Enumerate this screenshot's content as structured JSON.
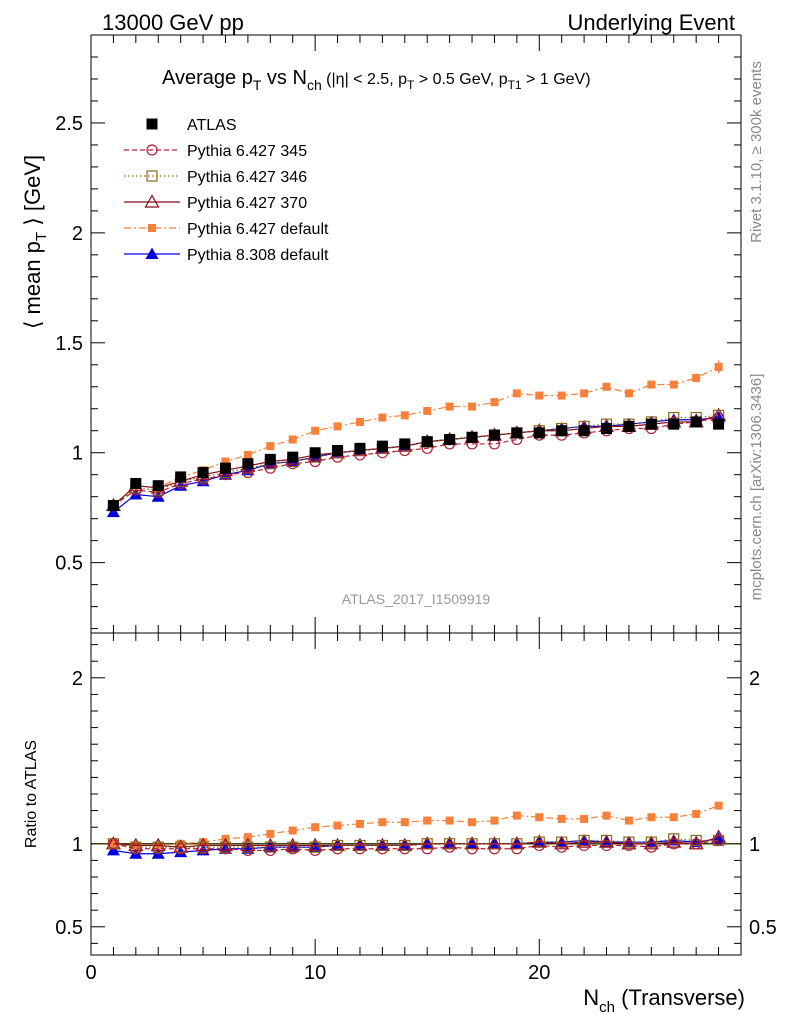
{
  "header": {
    "left": "13000 GeV pp",
    "right": "Underlying Event"
  },
  "side_labels": {
    "rivet": "Rivet 3.1.10, ≥ 300k events",
    "mcplots": "mcplots.cern.ch [arXiv:1306.3436]"
  },
  "watermark": "ATLAS_2017_I1509919",
  "chart_data": [
    {
      "type": "scatter",
      "panel": "main",
      "title": {
        "main": "Average p",
        "sub1": "T",
        "mid": " vs N",
        "sub2": "ch",
        "cut1": " (|η| < 2.5, p",
        "sub3": "T",
        "cut2": " > 0.5 GeV, p",
        "sub4": "T1",
        "cut3": " > 1 GeV)"
      },
      "ylabel": {
        "pre": "⟨ mean p",
        "sub": "T",
        "post": " ⟩ [GeV]"
      },
      "xlim": [
        0,
        29
      ],
      "ylim": [
        0.18,
        2.9
      ],
      "yticks": [
        "0.5",
        "1",
        "1.5",
        "2",
        "2.5"
      ],
      "legend_position": "top-left",
      "x": [
        1,
        2,
        3,
        4,
        5,
        6,
        7,
        8,
        9,
        10,
        11,
        12,
        13,
        14,
        15,
        16,
        17,
        18,
        19,
        20,
        21,
        22,
        23,
        24,
        25,
        26,
        27,
        28
      ],
      "series": [
        {
          "name": "ATLAS",
          "color": "#000000",
          "marker": "filled-square",
          "line": "none",
          "values": [
            0.76,
            0.86,
            0.85,
            0.89,
            0.91,
            0.93,
            0.95,
            0.97,
            0.98,
            1.0,
            1.01,
            1.02,
            1.03,
            1.04,
            1.05,
            1.06,
            1.07,
            1.08,
            1.09,
            1.09,
            1.1,
            1.1,
            1.11,
            1.12,
            1.13,
            1.13,
            1.14,
            1.13
          ]
        },
        {
          "name": "Pythia 6.427 345",
          "color": "#b22234",
          "marker": "open-circle",
          "line": "dashed",
          "values": [
            0.76,
            0.83,
            0.82,
            0.86,
            0.88,
            0.9,
            0.91,
            0.93,
            0.95,
            0.96,
            0.98,
            0.99,
            1.0,
            1.01,
            1.02,
            1.04,
            1.04,
            1.04,
            1.06,
            1.08,
            1.08,
            1.09,
            1.1,
            1.11,
            1.11,
            1.13,
            1.14,
            1.16
          ]
        },
        {
          "name": "Pythia 6.427 346",
          "color": "#8b6914",
          "marker": "open-square",
          "line": "dotted",
          "values": [
            0.76,
            0.84,
            0.83,
            0.87,
            0.89,
            0.91,
            0.93,
            0.95,
            0.96,
            0.98,
            1.0,
            1.01,
            1.02,
            1.03,
            1.05,
            1.06,
            1.07,
            1.08,
            1.09,
            1.1,
            1.11,
            1.12,
            1.13,
            1.13,
            1.14,
            1.16,
            1.16,
            1.17
          ]
        },
        {
          "name": "Pythia 6.427 370",
          "color": "#8b0a1a",
          "marker": "open-triangle",
          "line": "solid",
          "values": [
            0.76,
            0.85,
            0.84,
            0.87,
            0.9,
            0.92,
            0.94,
            0.96,
            0.97,
            0.99,
            1.0,
            1.01,
            1.02,
            1.03,
            1.05,
            1.06,
            1.07,
            1.08,
            1.09,
            1.1,
            1.1,
            1.11,
            1.12,
            1.12,
            1.13,
            1.14,
            1.14,
            1.17
          ]
        },
        {
          "name": "Pythia 6.427 default",
          "color": "#f7803a",
          "marker": "filled-square-small",
          "line": "dashdot",
          "values": [
            0.76,
            0.85,
            0.84,
            0.89,
            0.92,
            0.96,
            0.99,
            1.03,
            1.06,
            1.1,
            1.12,
            1.14,
            1.16,
            1.17,
            1.19,
            1.21,
            1.21,
            1.23,
            1.27,
            1.26,
            1.26,
            1.27,
            1.3,
            1.27,
            1.31,
            1.31,
            1.34,
            1.39
          ],
          "errors": [
            0.01,
            0.01,
            0.01,
            0.01,
            0.01,
            0.01,
            0.01,
            0.01,
            0.01,
            0.01,
            0.01,
            0.01,
            0.01,
            0.01,
            0.01,
            0.01,
            0.01,
            0.01,
            0.01,
            0.01,
            0.01,
            0.01,
            0.01,
            0.01,
            0.01,
            0.01,
            0.02,
            0.03
          ]
        },
        {
          "name": "Pythia 8.308 default",
          "color": "#0000dd",
          "marker": "filled-triangle",
          "line": "solid",
          "values": [
            0.73,
            0.81,
            0.8,
            0.85,
            0.87,
            0.9,
            0.92,
            0.95,
            0.96,
            0.98,
            1.0,
            1.01,
            1.02,
            1.03,
            1.05,
            1.06,
            1.07,
            1.08,
            1.09,
            1.1,
            1.11,
            1.12,
            1.12,
            1.13,
            1.14,
            1.15,
            1.15,
            1.16
          ]
        }
      ]
    },
    {
      "type": "scatter",
      "panel": "ratio",
      "ylabel": "Ratio to ATLAS",
      "xlabel": {
        "pre": "N",
        "sub": "ch",
        "post": " (Transverse)"
      },
      "xlim": [
        0,
        29
      ],
      "ylim": [
        0.33,
        2.27
      ],
      "xticks": [
        "0",
        "10",
        "20"
      ],
      "yticks": [
        "0.5",
        "1",
        "2"
      ],
      "reference_line": 1,
      "x": [
        1,
        2,
        3,
        4,
        5,
        6,
        7,
        8,
        9,
        10,
        11,
        12,
        13,
        14,
        15,
        16,
        17,
        18,
        19,
        20,
        21,
        22,
        23,
        24,
        25,
        26,
        27,
        28
      ],
      "series": [
        {
          "name": "Pythia 6.427 345",
          "color": "#b22234",
          "marker": "open-circle",
          "line": "dashed",
          "values": [
            1.0,
            0.97,
            0.97,
            0.97,
            0.97,
            0.97,
            0.96,
            0.96,
            0.97,
            0.96,
            0.97,
            0.97,
            0.97,
            0.97,
            0.97,
            0.98,
            0.97,
            0.97,
            0.97,
            0.99,
            0.98,
            0.99,
            0.99,
            0.99,
            0.98,
            1.0,
            1.0,
            1.02
          ]
        },
        {
          "name": "Pythia 6.427 346",
          "color": "#8b6914",
          "marker": "open-square",
          "line": "dotted",
          "values": [
            1.0,
            0.98,
            0.98,
            0.98,
            0.98,
            0.98,
            0.98,
            0.98,
            0.98,
            0.98,
            0.99,
            0.99,
            0.99,
            0.99,
            1.0,
            1.0,
            1.0,
            1.0,
            1.0,
            1.01,
            1.01,
            1.02,
            1.02,
            1.01,
            1.01,
            1.03,
            1.02,
            1.02
          ]
        },
        {
          "name": "Pythia 6.427 370",
          "color": "#8b0a1a",
          "marker": "open-triangle",
          "line": "solid",
          "values": [
            1.0,
            0.99,
            0.99,
            0.98,
            0.99,
            0.99,
            0.99,
            0.99,
            0.99,
            0.99,
            0.99,
            0.99,
            0.99,
            0.99,
            1.0,
            1.0,
            1.0,
            1.0,
            1.0,
            1.01,
            1.0,
            1.01,
            1.01,
            1.0,
            1.0,
            1.01,
            1.0,
            1.04
          ]
        },
        {
          "name": "Pythia 6.427 default",
          "color": "#f7803a",
          "marker": "filled-square-small",
          "line": "dashdot",
          "values": [
            1.0,
            0.99,
            0.99,
            1.0,
            1.01,
            1.03,
            1.04,
            1.06,
            1.08,
            1.1,
            1.11,
            1.12,
            1.13,
            1.13,
            1.14,
            1.14,
            1.13,
            1.14,
            1.17,
            1.16,
            1.15,
            1.15,
            1.17,
            1.14,
            1.16,
            1.16,
            1.18,
            1.23
          ],
          "errors": [
            0.01,
            0.01,
            0.01,
            0.01,
            0.01,
            0.01,
            0.01,
            0.01,
            0.01,
            0.01,
            0.01,
            0.01,
            0.01,
            0.01,
            0.01,
            0.01,
            0.01,
            0.01,
            0.01,
            0.01,
            0.01,
            0.01,
            0.01,
            0.01,
            0.01,
            0.01,
            0.01,
            0.02
          ]
        },
        {
          "name": "Pythia 8.308 default",
          "color": "#0000dd",
          "marker": "filled-triangle",
          "line": "solid",
          "values": [
            0.96,
            0.94,
            0.94,
            0.95,
            0.96,
            0.97,
            0.97,
            0.98,
            0.98,
            0.98,
            0.99,
            0.99,
            0.99,
            0.99,
            1.0,
            1.0,
            1.0,
            1.0,
            1.0,
            1.01,
            1.01,
            1.02,
            1.01,
            1.01,
            1.01,
            1.02,
            1.01,
            1.03
          ]
        }
      ]
    }
  ]
}
